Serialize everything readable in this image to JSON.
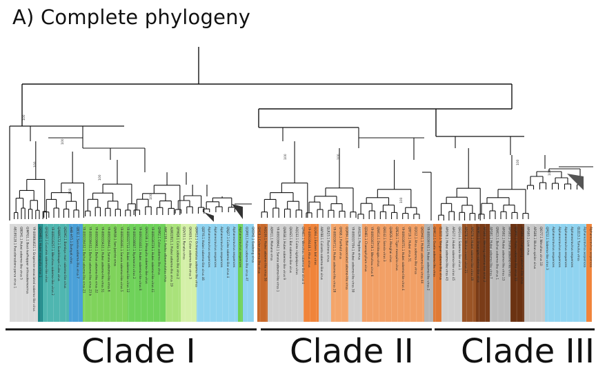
{
  "title": "A) Complete phylogeny",
  "colors": {
    "clade1_teal": "#1f8a8a",
    "clade1_green": "#6fd25a",
    "clade1_blue": "#4aa0d8",
    "clade2_orange": "#f0843a",
    "clade3_brown": "#7a3c18",
    "outgroup_lightblue": "#8fd3f0",
    "grey": "#9a9a9a"
  },
  "clades": [
    {
      "label": "Clade I"
    },
    {
      "label": "Clade II"
    },
    {
      "label": "Clade III"
    }
  ],
  "bootstrap_label": "100",
  "taxa": [
    "AB189128.1 Pseudorasbora parva virus 1",
    "QBDH1.1 Hubei sobemo-like virus 5",
    "QIMFG1.1 Beet-leafhopper orthosobemovirus",
    "YP-009664621.1 Grapevine-associated sobemo-like virus",
    "QKDH61.1 Hubei mosquito virus 1",
    "QFQS67.1 Cucumis sobemo-like virus",
    "YP-009316257.1 Wenzhou sobemo-like virus 2",
    "QAWM172.1 Guadeloupe Culex virus",
    "QKDM2.1 Bombyx mori sobemo-like virus",
    "AHB-HY5.1 Dumyat virus",
    "QB32.1 Sanxia sobemo-like virus 7",
    "YP-009336432.1 Beihai sobemo-like virus 23",
    "YP-009336432.1 Beihai sobemo-like virus 23 b",
    "YP-009336662.1 Beihai sobemo-like virus 22",
    "YP-009333422.1 Hubei sobemo-like virus 31",
    "YP-009336441.1 Sanxia sobemo-like virus 6",
    "QNRG9.1 San-Jacinto virus",
    "YP-009336461.1 Sanxia sobemo-like virus 5",
    "YP-009337712.1 Hubei sobemo-like virus 12",
    "YP-009336607.1 Nyamanini virus 2",
    "YP-009333402.1 Hubei sobemo-like virus 8",
    "QKAI238.1 Mosquito sobemo-like virus",
    "YP-009336729.1 Hubei sobemo-like virus 41",
    "QHM2.1 Culex sobemo-like virus",
    "AWC238.1 Aedes alboannulatus virus",
    "ALW22821.1 Hubei sobemo-like virus 19",
    "QFHQ8.1 Culex sobemo-like virus 2",
    "QQV53.1 Renata virus",
    "QKAG9.1 Culex sobemo-like virus 3",
    "QKM12.1 Ochlerotatus sobemo-like virus",
    "QEFY8.1 Hubei sobemo-like virus 46",
    "Alphanecrovirus sequences",
    "Alphanecrovirus sequences",
    "Alphanecrovirus sequences",
    "QNJ27.1 Culex sobemo-like virus 4",
    "Alphanecrovirus sequences",
    "Alphanecrovirus sequences",
    "QQP83.1 Hubei sobemo-like virus 47",
    "QKDH2.1 Gaebong virus",
    "QHC8.1 Culex picorna-like virus",
    "AQQ30.1 Hubei sobemo-like virus 50",
    "ADH11.1 Mahano virus",
    "YP-009336642.1 Sanxia sobemo-like virus 1",
    "QNRG8.1 Hubei sobemo-like virus 9",
    "QKAG5.1 Bat sobemo-like virus",
    "AQQ32.1 Culex nigripalpus virus",
    "QPHE1.1 Wenzhou sobemo-like virus 4",
    "YP-009336448.1 Ahus virus",
    "QQI84.1 Eastern bat virus",
    "AWY88.1 Culiseta sobemo-like virus",
    "QLR25.1 Pastirone virus",
    "YP-009336711.1 Hubei sobemo-like virus 28",
    "QHG8.1 Fairfield virus",
    "QQP84.1 Bat-associated sobemo-like virus",
    "YP-009337704.1 Hubei sobemo-like virus 30",
    "AXQ26.1 Rogdoe virus",
    "QDH81.1 Chaerophyllum virus",
    "YP-009336719.1 Wenzhou virus 6",
    "QNK14.1 Dezidougou virus",
    "QKO42.1 Sanxia virus 3",
    "QHM29.1 Menghai virus",
    "QPE30.1 Tiger mosquito virus",
    "YP-009336751.1 Hubei sobemo-like virus 4",
    "QRF19.1 Hubei virus 51",
    "QQI12.1 Ahus sobemo-like virus",
    "QKDH41.1 Hubei sobemo-like virus 44",
    "YP-009336742.1 Hubei sobemo-like virus 2",
    "QHK12.1 Guato sobemo-like virus",
    "QLQ22.1 Yongsan sobemo-like virus",
    "APG76.1 Hubei sobemo-like virus 43",
    "APG77.1 Hubei sobemo-like virus 45",
    "QEQ14.1 Sobemo-like virus 1",
    "APG78.1 Wuhan insect virus 21",
    "APG79.1 Hubei sobemo-like virus 49",
    "AVM11.1 Shuangao sobemo-like virus",
    "APG80.1 Wenling sobemo-like virus 2",
    "APG81.1 Hubei sobemo-like virus 7",
    "QNK15.1 Beihai sobemo-like virus 1",
    "APG82.1 Hubei sobemo-like virus 13",
    "APG83.1 Shahe sobemo-like virus",
    "QQP91.1 Hubei sobemo-like virus 33",
    "APG84.1 Changjiang sobemo-like virus",
    "APG85.1 Lishi virus",
    "APG86.1 Wuhan spider virus",
    "QKI77.1 Wenzhou virus 10",
    "QPQ52.1 Sobemo-like virus 3",
    "Alphanecrovirus sequences",
    "Alphanecrovirus sequences",
    "Alphanecrovirus sequences",
    "Alphanecrovirus sequences",
    "QLQ13.1 Tumulus virus",
    "Alphanecrovirus sequences",
    "Alphanecrovirus sequences"
  ]
}
